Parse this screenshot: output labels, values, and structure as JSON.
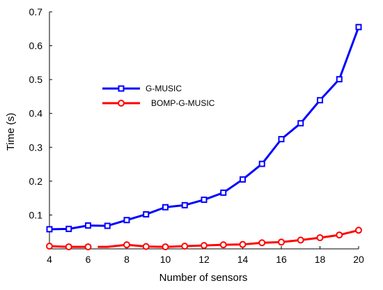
{
  "chart_data": {
    "type": "line",
    "title": "",
    "xlabel": "Number of sensors",
    "ylabel": "Time (s)",
    "xlim": [
      4,
      20
    ],
    "ylim": [
      0,
      0.7
    ],
    "x_ticks": [
      "4",
      "6",
      "8",
      "10",
      "12",
      "14",
      "16",
      "18",
      "20"
    ],
    "y_ticks": [
      "0.1",
      "0.2",
      "0.3",
      "0.4",
      "0.5",
      "0.6",
      "0.7"
    ],
    "grid": false,
    "legend_position": "upper-left",
    "series": [
      {
        "name": "G-MUSIC",
        "color": "#0000ff",
        "marker": "square",
        "x": [
          4,
          5,
          6,
          7,
          8,
          9,
          10,
          11,
          12,
          13,
          14,
          15,
          16,
          17,
          18,
          19,
          20
        ],
        "y": [
          0.058,
          0.059,
          0.069,
          0.068,
          0.085,
          0.102,
          0.123,
          0.129,
          0.145,
          0.166,
          0.205,
          0.251,
          0.324,
          0.371,
          0.439,
          0.501,
          0.655
        ]
      },
      {
        "name": "BOMP-G-MUSIC",
        "color": "#ff0000",
        "marker": "circle",
        "x": [
          4,
          5,
          6,
          7,
          8,
          9,
          10,
          11,
          12,
          13,
          14,
          15,
          16,
          17,
          18,
          19,
          20
        ],
        "y": [
          0.008,
          0.006,
          0.006,
          null,
          0.012,
          0.007,
          0.006,
          0.008,
          0.01,
          0.012,
          0.013,
          0.018,
          0.02,
          0.026,
          0.033,
          0.041,
          0.055
        ],
        "gap_segment_x": [
          6.5,
          7
        ]
      }
    ]
  }
}
